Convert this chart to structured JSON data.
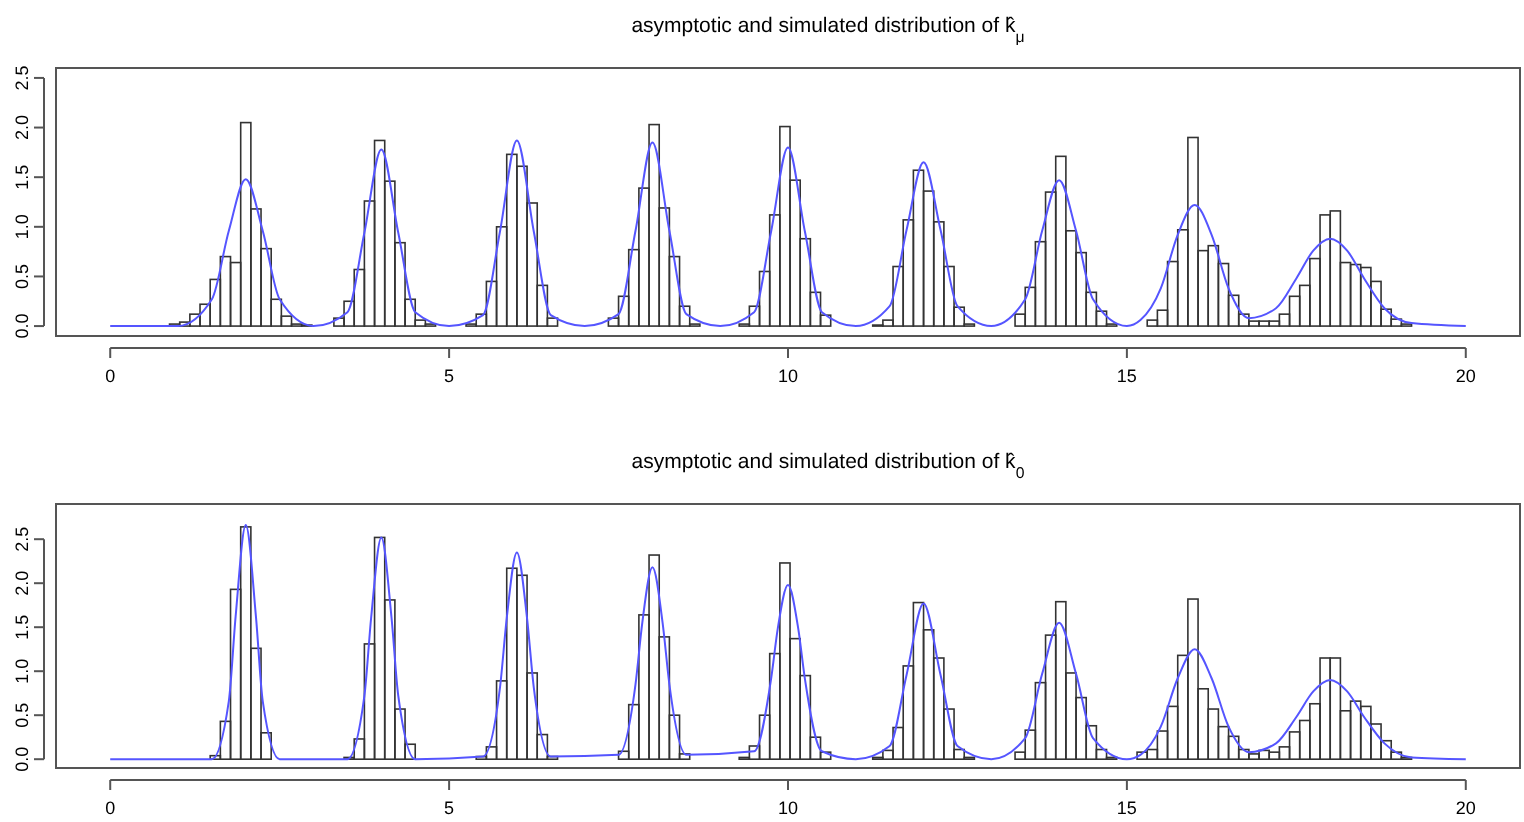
{
  "chart_data": [
    {
      "type": "histogram",
      "title": "asymptotic and simulated distribution of k̂$_{μ}$",
      "xlim": [
        -0.8,
        20.8
      ],
      "xticks": [
        0,
        5,
        10,
        15,
        20
      ],
      "ylim": [
        -0.1,
        2.6
      ],
      "yticks": [
        {
          "value": 0,
          "label": "0.0"
        },
        {
          "value": 0.5,
          "label": "0.5"
        },
        {
          "value": 1,
          "label": "1.0"
        },
        {
          "value": 1.5,
          "label": "1.5"
        },
        {
          "value": 2,
          "label": "2.0"
        },
        {
          "value": 2.5,
          "label": "2.5"
        }
      ],
      "grid": false,
      "series": [
        {
          "type": "histogram",
          "color": "#333333",
          "bins": [
            0.875,
            1.025,
            1.175,
            1.325,
            1.475,
            1.625,
            1.775,
            1.925,
            2.075,
            2.225,
            2.375,
            2.525,
            2.675,
            2.825,
            2.975
          ],
          "values": [
            0.02,
            0.04,
            0.12,
            0.22,
            0.47,
            0.7,
            0.64,
            2.05,
            1.18,
            0.78,
            0.27,
            0.1,
            0.02,
            0.01
          ]
        },
        {
          "type": "histogram",
          "color": "#333333",
          "bins": [
            3.3,
            3.45,
            3.6,
            3.75,
            3.9,
            4.05,
            4.2,
            4.35,
            4.5,
            4.65,
            4.8
          ],
          "values": [
            0.08,
            0.25,
            0.57,
            1.26,
            1.87,
            1.46,
            0.84,
            0.27,
            0.06,
            0.02
          ]
        },
        {
          "type": "histogram",
          "color": "#333333",
          "bins": [
            5.25,
            5.4,
            5.55,
            5.7,
            5.85,
            6,
            6.15,
            6.3,
            6.45,
            6.6
          ],
          "values": [
            0.02,
            0.12,
            0.45,
            1,
            1.73,
            1.61,
            1.24,
            0.41,
            0.08
          ]
        },
        {
          "type": "histogram",
          "color": "#333333",
          "bins": [
            7.35,
            7.5,
            7.65,
            7.8,
            7.95,
            8.1,
            8.25,
            8.4,
            8.55,
            8.7
          ],
          "values": [
            0.08,
            0.3,
            0.77,
            1.39,
            2.03,
            1.19,
            0.7,
            0.2,
            0.02
          ]
        },
        {
          "type": "histogram",
          "color": "#333333",
          "bins": [
            9.28,
            9.43,
            9.58,
            9.73,
            9.88,
            10.03,
            10.18,
            10.33,
            10.48,
            10.63
          ],
          "values": [
            0.02,
            0.2,
            0.55,
            1.12,
            2.01,
            1.47,
            0.88,
            0.34,
            0.11
          ]
        },
        {
          "type": "histogram",
          "color": "#333333",
          "bins": [
            11.25,
            11.4,
            11.55,
            11.7,
            11.85,
            12,
            12.15,
            12.3,
            12.45,
            12.6,
            12.75
          ],
          "values": [
            0.01,
            0.06,
            0.6,
            1.07,
            1.57,
            1.36,
            1.05,
            0.6,
            0.19,
            0.02
          ]
        },
        {
          "type": "histogram",
          "color": "#333333",
          "bins": [
            13.35,
            13.5,
            13.65,
            13.8,
            13.95,
            14.1,
            14.25,
            14.4,
            14.55,
            14.7,
            14.85
          ],
          "values": [
            0.12,
            0.39,
            0.85,
            1.35,
            1.71,
            0.96,
            0.74,
            0.34,
            0.15,
            0.02
          ]
        },
        {
          "type": "histogram",
          "color": "#333333",
          "bins": [
            15.3,
            15.45,
            15.6,
            15.75,
            15.9,
            16.05,
            16.2,
            16.35,
            16.5,
            16.65,
            16.8,
            16.95
          ],
          "values": [
            0.06,
            0.16,
            0.65,
            0.97,
            1.9,
            0.76,
            0.81,
            0.63,
            0.31,
            0.12,
            0.05
          ]
        },
        {
          "type": "histogram",
          "color": "#333333",
          "bins": [
            16.95,
            17.1,
            17.25,
            17.4,
            17.55,
            17.7,
            17.85,
            18,
            18.15,
            18.3,
            18.45,
            18.6,
            18.75,
            18.9,
            19.05,
            19.2
          ],
          "values": [
            0.05,
            0.05,
            0.12,
            0.3,
            0.41,
            0.68,
            1.12,
            1.16,
            0.64,
            0.62,
            0.59,
            0.45,
            0.17,
            0.07,
            0.02
          ]
        },
        {
          "type": "line",
          "color": "#5555ff",
          "x": [
            0,
            1,
            1.5,
            1.75,
            2,
            2.25,
            2.5,
            3,
            3.5,
            3.75,
            4,
            4.25,
            4.5,
            5,
            5.5,
            5.75,
            6,
            6.25,
            6.5,
            7,
            7.5,
            7.75,
            8,
            8.25,
            8.5,
            9,
            9.5,
            9.75,
            10,
            10.25,
            10.5,
            11,
            11.5,
            11.75,
            12,
            12.25,
            12.5,
            13,
            13.5,
            13.75,
            14,
            14.25,
            14.5,
            15,
            15.2,
            15.5,
            15.75,
            16,
            16.25,
            16.5,
            16.8,
            17.2,
            17.5,
            17.75,
            18,
            18.25,
            18.5,
            18.8,
            19.2,
            20
          ],
          "values": [
            0,
            0,
            0.27,
            0.96,
            1.48,
            0.96,
            0.27,
            0,
            0.14,
            0.94,
            1.78,
            0.94,
            0.14,
            0,
            0.11,
            0.95,
            1.87,
            0.95,
            0.11,
            0,
            0.12,
            0.96,
            1.85,
            0.96,
            0.12,
            0,
            0.14,
            0.95,
            1.8,
            0.95,
            0.14,
            0,
            0.2,
            0.97,
            1.65,
            0.97,
            0.2,
            0,
            0.27,
            0.96,
            1.47,
            0.96,
            0.27,
            0,
            0.06,
            0.38,
            0.92,
            1.22,
            0.92,
            0.38,
            0.08,
            0.18,
            0.48,
            0.76,
            0.88,
            0.76,
            0.48,
            0.18,
            0.03,
            0
          ]
        }
      ]
    },
    {
      "type": "histogram",
      "title": "asymptotic and simulated distribution of k̂$_{0}$",
      "xlim": [
        -0.8,
        20.8
      ],
      "xticks": [
        0,
        5,
        10,
        15,
        20
      ],
      "ylim": [
        -0.1,
        2.9
      ],
      "yticks": [
        {
          "value": 0,
          "label": "0.0"
        },
        {
          "value": 0.5,
          "label": "0.5"
        },
        {
          "value": 1,
          "label": "1.0"
        },
        {
          "value": 1.5,
          "label": "1.5"
        },
        {
          "value": 2,
          "label": "2.0"
        },
        {
          "value": 2.5,
          "label": "2.5"
        }
      ],
      "grid": false,
      "series": [
        {
          "type": "histogram",
          "color": "#333333",
          "bins": [
            1.475,
            1.625,
            1.775,
            1.925,
            2.075,
            2.225,
            2.375
          ],
          "values": [
            0.04,
            0.43,
            1.93,
            2.64,
            1.26,
            0.3
          ]
        },
        {
          "type": "histogram",
          "color": "#333333",
          "bins": [
            3.45,
            3.6,
            3.75,
            3.9,
            4.05,
            4.2,
            4.35,
            4.5
          ],
          "values": [
            0.02,
            0.23,
            1.31,
            2.52,
            1.81,
            0.57,
            0.17
          ]
        },
        {
          "type": "histogram",
          "color": "#333333",
          "bins": [
            5.4,
            5.55,
            5.7,
            5.85,
            6,
            6.15,
            6.3,
            6.45,
            6.6
          ],
          "values": [
            0.03,
            0.14,
            0.89,
            2.17,
            2.09,
            0.98,
            0.28,
            0.03
          ]
        },
        {
          "type": "histogram",
          "color": "#333333",
          "bins": [
            7.5,
            7.65,
            7.8,
            7.95,
            8.1,
            8.25,
            8.4,
            8.55
          ],
          "values": [
            0.09,
            0.62,
            1.64,
            2.32,
            1.39,
            0.5,
            0.06
          ]
        },
        {
          "type": "histogram",
          "color": "#333333",
          "bins": [
            9.28,
            9.43,
            9.58,
            9.73,
            9.88,
            10.03,
            10.18,
            10.33,
            10.48,
            10.63
          ],
          "values": [
            0.02,
            0.15,
            0.5,
            1.2,
            2.23,
            1.37,
            0.95,
            0.25,
            0.08
          ]
        },
        {
          "type": "histogram",
          "color": "#333333",
          "bins": [
            11.25,
            11.4,
            11.55,
            11.7,
            11.85,
            12,
            12.15,
            12.3,
            12.45,
            12.6,
            12.75
          ],
          "values": [
            0.02,
            0.1,
            0.36,
            1.06,
            1.78,
            1.47,
            1.15,
            0.57,
            0.11,
            0.02
          ]
        },
        {
          "type": "histogram",
          "color": "#333333",
          "bins": [
            13.35,
            13.5,
            13.65,
            13.8,
            13.95,
            14.1,
            14.25,
            14.4,
            14.55,
            14.7,
            14.85
          ],
          "values": [
            0.08,
            0.33,
            0.87,
            1.41,
            1.79,
            0.98,
            0.7,
            0.38,
            0.11,
            0.02
          ]
        },
        {
          "type": "histogram",
          "color": "#333333",
          "bins": [
            15.15,
            15.3,
            15.45,
            15.6,
            15.75,
            15.9,
            16.05,
            16.2,
            16.35,
            16.5,
            16.65,
            16.8,
            16.95
          ],
          "values": [
            0.08,
            0.11,
            0.32,
            0.6,
            1.18,
            1.82,
            0.8,
            0.57,
            0.37,
            0.26,
            0.11,
            0.06
          ]
        },
        {
          "type": "histogram",
          "color": "#333333",
          "bins": [
            16.95,
            17.1,
            17.25,
            17.4,
            17.55,
            17.7,
            17.85,
            18,
            18.15,
            18.3,
            18.45,
            18.6,
            18.75,
            18.9,
            19.05,
            19.2
          ],
          "values": [
            0.1,
            0.08,
            0.14,
            0.31,
            0.44,
            0.63,
            1.15,
            1.15,
            0.55,
            0.66,
            0.6,
            0.4,
            0.21,
            0.08,
            0.02
          ]
        },
        {
          "type": "line",
          "color": "#5555ff",
          "x": [
            0,
            1.5,
            1.75,
            1.85,
            2,
            2.15,
            2.25,
            2.5,
            3.5,
            3.75,
            3.85,
            4,
            4.15,
            4.25,
            4.5,
            5.5,
            5.75,
            5.85,
            6,
            6.15,
            6.25,
            6.5,
            7.5,
            7.75,
            7.85,
            8,
            8.15,
            8.25,
            8.5,
            9.5,
            9.75,
            9.85,
            10,
            10.15,
            10.25,
            10.5,
            11,
            11.5,
            11.75,
            12,
            12.25,
            12.5,
            13,
            13.5,
            13.75,
            14,
            14.25,
            14.5,
            15,
            15.2,
            15.5,
            15.75,
            16,
            16.25,
            16.5,
            16.8,
            17.2,
            17.5,
            17.75,
            18,
            18.25,
            18.5,
            18.8,
            19.2,
            20
          ],
          "values": [
            0,
            0,
            0.66,
            1.62,
            2.66,
            1.62,
            0.66,
            0,
            0,
            0.72,
            1.61,
            2.52,
            1.61,
            0.72,
            0,
            0.03,
            0.81,
            1.6,
            2.35,
            1.6,
            0.81,
            0.03,
            0.05,
            0.85,
            1.55,
            2.18,
            1.55,
            0.85,
            0.05,
            0.09,
            0.91,
            1.49,
            1.98,
            1.49,
            0.91,
            0.09,
            0,
            0.15,
            0.96,
            1.77,
            0.96,
            0.15,
            0,
            0.24,
            0.97,
            1.55,
            0.97,
            0.24,
            0,
            0.05,
            0.37,
            0.92,
            1.25,
            0.92,
            0.37,
            0.08,
            0.18,
            0.48,
            0.77,
            0.9,
            0.77,
            0.48,
            0.18,
            0.02,
            0
          ]
        }
      ]
    }
  ]
}
